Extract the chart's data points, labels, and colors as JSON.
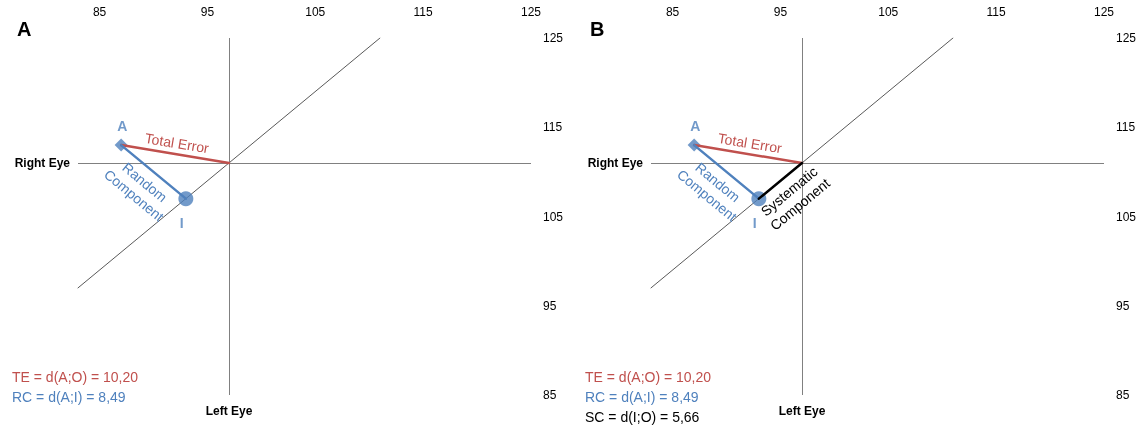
{
  "chart_data": [
    {
      "type": "scatter",
      "title": "A",
      "xlim": [
        83,
        125
      ],
      "ylim": [
        85,
        125
      ],
      "xticks": [
        85,
        95,
        105,
        115,
        125
      ],
      "yticks": [
        85,
        95,
        105,
        115,
        125
      ],
      "ref_lines": [
        {
          "axis": "x",
          "value": 97,
          "label": "Left Eye",
          "color": "#808080"
        },
        {
          "axis": "y",
          "value": 111,
          "label": "Right Eye",
          "color": "#808080"
        }
      ],
      "series": [
        {
          "type": "line",
          "color": "#595959",
          "x": [
            83,
            111
          ],
          "values": [
            97,
            125
          ],
          "marker": "none"
        },
        {
          "type": "line",
          "name": "Total Error",
          "color": "#c0504d",
          "x": [
            87,
            97
          ],
          "values": [
            113,
            111
          ],
          "marker": "none"
        },
        {
          "type": "line",
          "name": "Random Component",
          "color": "#4f81bd",
          "x": [
            87,
            93
          ],
          "values": [
            113,
            107
          ],
          "marker": "none"
        },
        {
          "name": "A",
          "color": "#4f81bd",
          "x": [
            87
          ],
          "values": [
            113
          ],
          "marker": "diamond"
        },
        {
          "name": "I",
          "color": "#4f81bd",
          "x": [
            93
          ],
          "values": [
            107
          ],
          "marker": "circle"
        }
      ],
      "annotations": [
        "TE = d(A;O) = 10,20",
        "RC = d(A;I) = 8,49"
      ]
    },
    {
      "type": "scatter",
      "title": "B",
      "xlim": [
        83,
        125
      ],
      "ylim": [
        85,
        125
      ],
      "xticks": [
        85,
        95,
        105,
        115,
        125
      ],
      "yticks": [
        85,
        95,
        105,
        115,
        125
      ],
      "ref_lines": [
        {
          "axis": "x",
          "value": 97,
          "label": "Left Eye",
          "color": "#808080"
        },
        {
          "axis": "y",
          "value": 111,
          "label": "Right Eye",
          "color": "#808080"
        }
      ],
      "series": [
        {
          "type": "line",
          "color": "#595959",
          "x": [
            83,
            111
          ],
          "values": [
            97,
            125
          ],
          "marker": "none"
        },
        {
          "type": "line",
          "name": "Total Error",
          "color": "#c0504d",
          "x": [
            87,
            97
          ],
          "values": [
            113,
            111
          ],
          "marker": "none"
        },
        {
          "type": "line",
          "name": "Random Component",
          "color": "#4f81bd",
          "x": [
            87,
            93
          ],
          "values": [
            113,
            107
          ],
          "marker": "none"
        },
        {
          "type": "line",
          "name": "Systematic Component",
          "color": "#000000",
          "x": [
            93,
            97
          ],
          "values": [
            107,
            111
          ],
          "marker": "none"
        },
        {
          "name": "A",
          "color": "#4f81bd",
          "x": [
            87
          ],
          "values": [
            113
          ],
          "marker": "diamond"
        },
        {
          "name": "I",
          "color": "#4f81bd",
          "x": [
            93
          ],
          "values": [
            107
          ],
          "marker": "circle"
        }
      ],
      "annotations": [
        "TE = d(A;O) = 10,20",
        "RC = d(A;I) = 8,49",
        "SC = d(I;O) = 5,66"
      ]
    }
  ]
}
